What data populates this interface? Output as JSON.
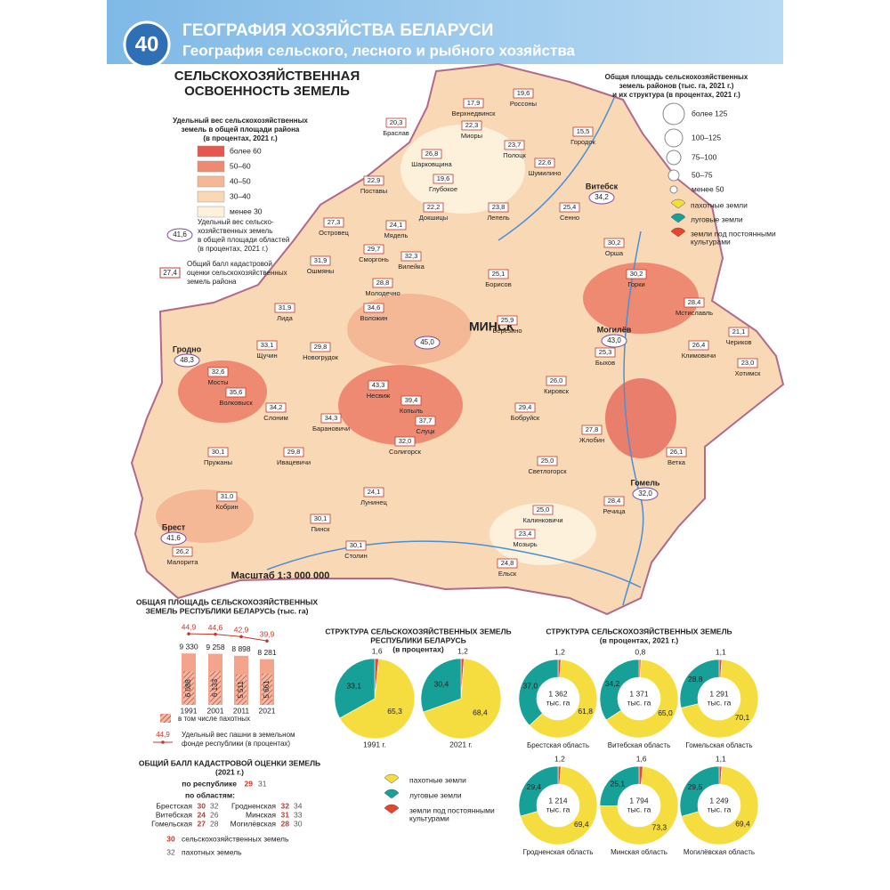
{
  "header": {
    "number": "40",
    "title": "ГЕОГРАФИЯ ХОЗЯЙСТВА БЕЛАРУСИ",
    "subtitle": "География сельского, лесного и рыбного хозяйства"
  },
  "map": {
    "title_lines": [
      "СЕЛЬСКОХОЗЯЙСТВЕННАЯ",
      "ОСВОЕННОСТЬ ЗЕМЕЛЬ"
    ],
    "scale": "Масштаб 1:3 000 000",
    "capital_label": "МИНСК",
    "legend_share": {
      "title_lines": [
        "Удельный вес сельскохозяйственных",
        "земель в общей площади района",
        "(в процентах, 2021 г.)"
      ],
      "items": [
        {
          "label": "более 60",
          "color": "#e4584f"
        },
        {
          "label": "50–60",
          "color": "#ef8a72"
        },
        {
          "label": "40–50",
          "color": "#f5b896"
        },
        {
          "label": "30–40",
          "color": "#f9d8b6"
        },
        {
          "label": "менее 30",
          "color": "#fdf1dc"
        }
      ]
    },
    "legend_region": {
      "sample": "41,6",
      "lines": [
        "Удельный вес сельско-",
        "хозяйственных земель",
        "в общей площади областей",
        "(в процентах, 2021 г.)"
      ]
    },
    "legend_score": {
      "sample": "27,4",
      "lines": [
        "Общий балл кадастровой",
        "оценки сельскохозяйственных",
        "земель района"
      ]
    },
    "legend_area": {
      "title_lines": [
        "Общая площадь сельскохозяйственных",
        "земель районов (тыс. га, 2021 г.)",
        "и их структура (в процентах, 2021 г.)"
      ],
      "items": [
        "более 125",
        "100–125",
        "75–100",
        "50–75",
        "менее 50"
      ]
    },
    "regions": [
      {
        "name": "Витебск",
        "share": "34,2"
      },
      {
        "name": "Гродно",
        "share": "48,3"
      },
      {
        "name": "Минск",
        "share": "45,0"
      },
      {
        "name": "Могилёв",
        "share": "43,0"
      },
      {
        "name": "Гомель",
        "share": "32,0"
      },
      {
        "name": "Брест",
        "share": "41,6"
      }
    ],
    "districts": [
      {
        "name": "Браслав",
        "score": "20,3"
      },
      {
        "name": "Миоры",
        "score": "22,3"
      },
      {
        "name": "Верхнедвинск",
        "score": "17,9"
      },
      {
        "name": "Россоны",
        "score": "19,6"
      },
      {
        "name": "Полоцк",
        "score": "23,7"
      },
      {
        "name": "Городок",
        "score": "15,5"
      },
      {
        "name": "Шарковщина",
        "score": "26,8"
      },
      {
        "name": "Поставы",
        "score": "22,9"
      },
      {
        "name": "Глубокое",
        "score": "19,6"
      },
      {
        "name": "Докшицы",
        "score": "22,2"
      },
      {
        "name": "Лепель",
        "score": "23,8"
      },
      {
        "name": "Шумилино",
        "score": "22,6"
      },
      {
        "name": "Сенно",
        "score": "25,4"
      },
      {
        "name": "Орша",
        "score": "30,2"
      },
      {
        "name": "Мядель",
        "score": "24,1"
      },
      {
        "name": "Островец",
        "score": "27,3"
      },
      {
        "name": "Ошмяны",
        "score": "31,9"
      },
      {
        "name": "Сморгонь",
        "score": "29,7"
      },
      {
        "name": "Вилейка",
        "score": "32,3"
      },
      {
        "name": "Молодечно",
        "score": "28,8"
      },
      {
        "name": "Воложин",
        "score": "34,6"
      },
      {
        "name": "Лида",
        "score": "31,9"
      },
      {
        "name": "Щучин",
        "score": "33,1"
      },
      {
        "name": "Мосты",
        "score": "32,6"
      },
      {
        "name": "Волковыск",
        "score": "35,6"
      },
      {
        "name": "Слоним",
        "score": "34,2"
      },
      {
        "name": "Новогрудок",
        "score": "29,8"
      },
      {
        "name": "Несвиж",
        "score": "43,3"
      },
      {
        "name": "Копыль",
        "score": "39,4"
      },
      {
        "name": "Слуцк",
        "score": "37,7"
      },
      {
        "name": "Солигорск",
        "score": "32,0"
      },
      {
        "name": "Барановичи",
        "score": "34,3"
      },
      {
        "name": "Ивацевичи",
        "score": "29,8"
      },
      {
        "name": "Пружаны",
        "score": "30,1"
      },
      {
        "name": "Кобрин",
        "score": "31,0"
      },
      {
        "name": "Малорита",
        "score": "26,2"
      },
      {
        "name": "Пинск",
        "score": "30,1"
      },
      {
        "name": "Лунинец",
        "score": "24,1"
      },
      {
        "name": "Столин",
        "score": "30,1"
      },
      {
        "name": "Борисов",
        "score": "25,1"
      },
      {
        "name": "Березино",
        "score": "25,9"
      },
      {
        "name": "Бобруйск",
        "score": "29,4"
      },
      {
        "name": "Жлобин",
        "score": "27,8"
      },
      {
        "name": "Светлогорск",
        "score": "25,0"
      },
      {
        "name": "Калинковичи",
        "score": "25,0"
      },
      {
        "name": "Мозырь",
        "score": "23,4"
      },
      {
        "name": "Ельск",
        "score": "24,8"
      },
      {
        "name": "Речица",
        "score": "28,4"
      },
      {
        "name": "Ветка",
        "score": "26,1"
      },
      {
        "name": "Горки",
        "score": "30,2"
      },
      {
        "name": "Мстиславль",
        "score": "28,4"
      },
      {
        "name": "Климовичи",
        "score": "26,4"
      },
      {
        "name": "Хотимск",
        "score": "23,0"
      },
      {
        "name": "Чериков",
        "score": "21,1"
      },
      {
        "name": "Быхов",
        "score": "25,3"
      },
      {
        "name": "Кировск",
        "score": "26,0"
      }
    ]
  },
  "land_types": [
    {
      "label": "пахотные земли",
      "color": "#f6dd3f"
    },
    {
      "label": "луговые земли",
      "color": "#16a098"
    },
    {
      "label": "земли под постоянными культурами",
      "label_lines": [
        "земли под постоянными",
        "культурами"
      ],
      "color": "#e8452c"
    }
  ],
  "area_chart": {
    "title_lines": [
      "ОБЩАЯ ПЛОЩАДЬ СЕЛЬСКОХОЗЯЙСТВЕННЫХ",
      "ЗЕМЕЛЬ РЕСПУБЛИКИ БЕЛАРУСЬ (тыс. га)"
    ],
    "categories": [
      "1991",
      "2001",
      "2011",
      "2021"
    ],
    "totals": [
      9330,
      9258,
      8898,
      8281
    ],
    "totals_labels": [
      "9 330",
      "9 258",
      "8 898",
      "8 281"
    ],
    "arable": [
      6088,
      6133,
      5511,
      5661
    ],
    "arable_labels": [
      "6 088",
      "6 133",
      "5 511",
      "5 661"
    ],
    "arable_share": [
      44.9,
      44.6,
      42.9,
      39.9
    ],
    "arable_share_labels": [
      "44,9",
      "44,6",
      "42,9",
      "39,9"
    ],
    "legend_arable": "в том числе пахотных",
    "legend_share_sample": "44,9",
    "legend_share_lines": [
      "Удельный вес пашни в земельном",
      "фонде республики (в процентах)"
    ]
  },
  "republic_pies": {
    "title_lines": [
      "СТРУКТУРА СЕЛЬСКОХОЗЯЙСТВЕННЫХ ЗЕМЕЛЬ",
      "РЕСПУБЛИКИ БЕЛАРУСЬ",
      "(в процентах)"
    ],
    "pies": [
      {
        "name": "1991 г.",
        "values": [
          65.3,
          33.1,
          1.6
        ],
        "value_labels": [
          "65,3",
          "33,1",
          "1,6"
        ]
      },
      {
        "name": "2021 г.",
        "values": [
          68.4,
          30.4,
          1.2
        ],
        "value_labels": [
          "68,4",
          "30,4",
          "1,2"
        ]
      }
    ]
  },
  "region_donuts": {
    "title_lines": [
      "СТРУКТУРА СЕЛЬСКОХОЗЯЙСТВЕННЫХ ЗЕМЕЛЬ",
      "(в процентах, 2021 г.)"
    ],
    "unit": "тыс. га",
    "regions": [
      {
        "name": "Брестская область",
        "area": {
          "value": 1362,
          "label": "1 362"
        },
        "values": [
          61.8,
          37.0,
          1.2
        ],
        "value_labels": [
          "61,8",
          "37,0",
          "1,2"
        ]
      },
      {
        "name": "Витебская область",
        "area": {
          "value": 1371,
          "label": "1 371"
        },
        "values": [
          65.0,
          34.2,
          0.8
        ],
        "value_labels": [
          "65,0",
          "34,2",
          "0,8"
        ]
      },
      {
        "name": "Гомельская область",
        "area": {
          "value": 1291,
          "label": "1 291"
        },
        "values": [
          70.1,
          28.8,
          1.1
        ],
        "value_labels": [
          "70,1",
          "28,8",
          "1,1"
        ]
      },
      {
        "name": "Гродненская область",
        "area": {
          "value": 1214,
          "label": "1 214"
        },
        "values": [
          69.4,
          29.4,
          1.2
        ],
        "value_labels": [
          "69,4",
          "29,4",
          "1,2"
        ]
      },
      {
        "name": "Минская область",
        "area": {
          "value": 1794,
          "label": "1 794"
        },
        "values": [
          73.3,
          25.1,
          1.6
        ],
        "value_labels": [
          "73,3",
          "25,1",
          "1,6"
        ]
      },
      {
        "name": "Могилёвская область",
        "area": {
          "value": 1249,
          "label": "1 249"
        },
        "values": [
          69.4,
          29.5,
          1.1
        ],
        "value_labels": [
          "69,4",
          "29,5",
          "1,1"
        ]
      }
    ]
  },
  "cadastral": {
    "title_lines": [
      "ОБЩИЙ БАЛЛ КАДАСТРОВОЙ ОЦЕНКИ ЗЕМЕЛЬ",
      "(2021 г.)"
    ],
    "republic_label": "по республике",
    "republic": [
      29,
      31
    ],
    "regions_label": "по областям:",
    "rows": [
      {
        "name": "Брестская",
        "values": [
          30,
          32
        ]
      },
      {
        "name": "Витебская",
        "values": [
          24,
          26
        ]
      },
      {
        "name": "Гомельская",
        "values": [
          27,
          28
        ]
      },
      {
        "name": "Гродненская",
        "values": [
          32,
          34
        ]
      },
      {
        "name": "Минская",
        "values": [
          31,
          33
        ]
      },
      {
        "name": "Могилёвская",
        "values": [
          28,
          30
        ]
      }
    ],
    "legend": [
      {
        "sample": 30,
        "label": "сельскохозяйственных земель"
      },
      {
        "sample": 32,
        "label": "пахотных земель"
      }
    ]
  }
}
